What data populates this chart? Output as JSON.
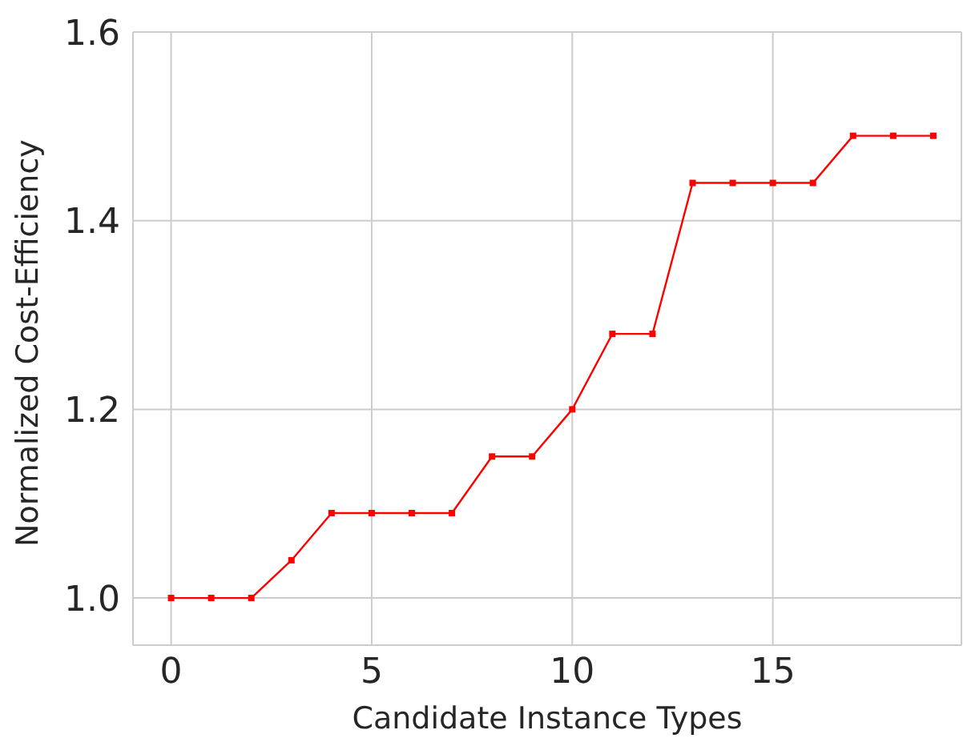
{
  "chart_data": {
    "type": "line",
    "xlabel": "Candidate Instance Types",
    "ylabel": "Normalized Cost-Efficiency",
    "x": [
      0,
      1,
      2,
      3,
      4,
      5,
      6,
      7,
      8,
      9,
      10,
      11,
      12,
      13,
      14,
      15,
      16,
      17,
      18,
      19
    ],
    "series": [
      {
        "color": "#ff0000",
        "values": [
          1.0,
          1.0,
          1.0,
          1.04,
          1.09,
          1.09,
          1.09,
          1.09,
          1.15,
          1.15,
          1.2,
          1.28,
          1.28,
          1.44,
          1.44,
          1.44,
          1.44,
          1.49,
          1.49,
          1.49
        ]
      }
    ],
    "xlim": [
      -0.95,
      19.7
    ],
    "ylim": [
      0.95,
      1.6
    ],
    "xticks": [
      0,
      5,
      10,
      15
    ],
    "yticks": [
      {
        "value": 1.0,
        "label": "1.0"
      },
      {
        "value": 1.2,
        "label": "1.2"
      },
      {
        "value": 1.4,
        "label": "1.4"
      },
      {
        "value": 1.6,
        "label": "1.6"
      }
    ],
    "grid": true,
    "marker": "square",
    "line_style": "solid"
  }
}
